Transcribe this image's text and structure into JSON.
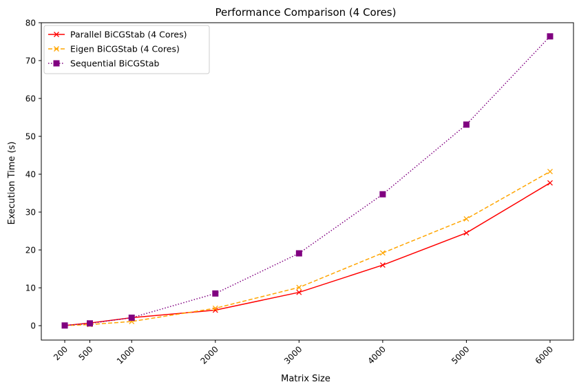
{
  "chart_data": {
    "type": "line",
    "title": "Performance Comparison (4 Cores)",
    "xlabel": "Matrix Size",
    "ylabel": "Execution Time (s)",
    "x": [
      200,
      500,
      1000,
      2000,
      3000,
      4000,
      5000,
      6000
    ],
    "x_tick_labels": [
      "200",
      "500",
      "1000",
      "2000",
      "3000",
      "4000",
      "5000",
      "6000"
    ],
    "y_ticks": [
      0,
      10,
      20,
      30,
      40,
      50,
      60,
      70,
      80
    ],
    "xlim": [
      -80,
      6280
    ],
    "ylim": [
      -3.8,
      80
    ],
    "grid": false,
    "legend_position": "top-left",
    "series": [
      {
        "name": "Parallel BiCGStab (4 Cores)",
        "values": [
          0.05,
          0.7,
          2.1,
          4.1,
          8.8,
          16.0,
          24.5,
          37.7
        ],
        "color": "#ff0000",
        "dash": "solid",
        "marker": "x"
      },
      {
        "name": "Eigen BiCGStab (4 Cores)",
        "values": [
          0.03,
          0.3,
          1.1,
          4.6,
          10.1,
          19.2,
          28.2,
          40.7
        ],
        "color": "#ffa500",
        "dash": "dashed",
        "marker": "x"
      },
      {
        "name": "Sequential BiCGStab",
        "values": [
          0.05,
          0.6,
          2.1,
          8.5,
          19.1,
          34.7,
          53.1,
          76.4
        ],
        "color": "#800080",
        "dash": "dotted",
        "marker": "square"
      }
    ]
  }
}
